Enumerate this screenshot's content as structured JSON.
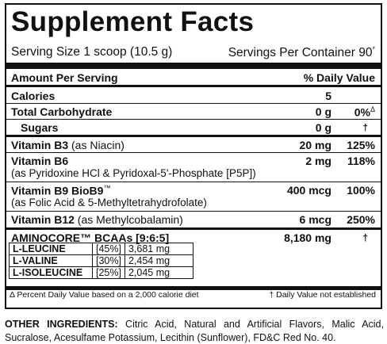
{
  "panel": {
    "title": "Supplement Facts",
    "serving_size": "Serving Size 1 scoop (10.5 g)",
    "servings_per_container": "Servings Per Container 90",
    "servings_mark": "*",
    "header_amount": "Amount Per Serving",
    "header_dv": "% Daily Value"
  },
  "rows": [
    {
      "name": "Calories",
      "detail": "",
      "amount": "5",
      "dv": ""
    },
    {
      "name": "Total Carbohydrate",
      "detail": "",
      "amount": "0 g",
      "dv": "0%",
      "dv_mark": "Δ"
    },
    {
      "name": "Sugars",
      "detail": "",
      "amount": "0 g",
      "dv": "†"
    },
    {
      "name": "Vitamin B3",
      "detail": "(as Niacin)",
      "amount": "20 mg",
      "dv": "125%"
    },
    {
      "name": "Vitamin B6",
      "detail": "(as Pyridoxine HCl & Pyridoxal-5'-Phosphate [P5P])",
      "amount": "2 mg",
      "dv": "118%"
    },
    {
      "name": "Vitamin B9 BioB9",
      "name_mark": "™",
      "detail": "(as Folic Acid & 5-Methyltetrahydrofolate)",
      "amount": "400 mcg",
      "dv": "100%"
    },
    {
      "name": "Vitamin B12",
      "detail": "(as Methylcobalamin)",
      "amount": "6 mcg",
      "dv": "250%"
    },
    {
      "name": "AMINOCORE™ BCAAs [9:6:5]",
      "detail": "",
      "amount": "8,180 mg",
      "dv": "†"
    }
  ],
  "aminos": [
    {
      "name": "L-LEUCINE",
      "percent": "[45%]",
      "amount": "3,681 mg"
    },
    {
      "name": "L-VALINE",
      "percent": "[30%]",
      "amount": "2,454 mg"
    },
    {
      "name": "L-ISOLEUCINE",
      "percent": "[25%]",
      "amount": "2,045 mg"
    }
  ],
  "footnotes": {
    "left": "Δ Percent Daily Value based on a 2,000 calorie diet",
    "right": "† Daily Value not established"
  },
  "other": {
    "label": "OTHER INGREDIENTS:",
    "text": "Citric Acid, Natural and Artificial Flavors, Malic Acid, Sucralose, Acesulfame Potassium, Lecithin (Sunflower), FD&C Red No. 40."
  }
}
